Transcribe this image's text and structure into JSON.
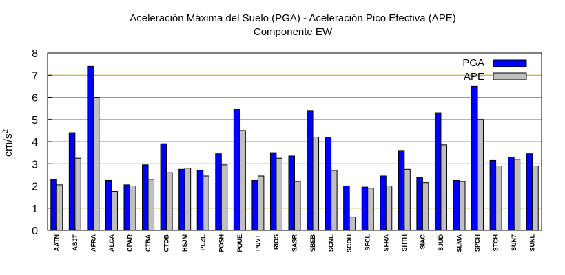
{
  "chart_data": {
    "type": "bar",
    "title_line1": "Aceleración Máxima del Suelo (PGA) -  Aceleración Pico Efectiva (APE)",
    "title_line2": "Componente EW",
    "ylabel": "cm/s²",
    "ylim": [
      0,
      8
    ],
    "yticks": [
      "0",
      "1",
      "2",
      "3",
      "4",
      "5",
      "6",
      "7",
      "8"
    ],
    "grid": "horizontal",
    "legend_position": "top-right",
    "categories": [
      "AATN",
      "ABJT",
      "AFRA",
      "ALCA",
      "CPAR",
      "CTBA",
      "CTOB",
      "HSJM",
      "PEZE",
      "POSH",
      "PQUE",
      "PUVT",
      "RIOS",
      "SASR",
      "SBEB",
      "SCNE",
      "SCOH",
      "SFCL",
      "SFRA",
      "SHTH",
      "SIAC",
      "SJUD",
      "SLMA",
      "SPCH",
      "STCH",
      "SUN7",
      "SUNL"
    ],
    "series": [
      {
        "name": "PGA",
        "color": "#0000ff",
        "values": [
          2.3,
          4.4,
          7.4,
          2.25,
          2.05,
          2.95,
          3.9,
          2.75,
          2.7,
          3.45,
          5.45,
          2.25,
          3.5,
          3.35,
          5.4,
          4.2,
          2.0,
          1.95,
          2.45,
          3.6,
          2.4,
          5.3,
          2.25,
          6.5,
          3.15,
          3.3,
          3.45
        ]
      },
      {
        "name": "APE",
        "color": "#c0c0c0",
        "values": [
          2.05,
          3.25,
          6.0,
          1.75,
          2.0,
          2.3,
          2.6,
          2.8,
          2.45,
          2.95,
          4.5,
          2.45,
          3.25,
          2.2,
          4.2,
          2.7,
          0.6,
          1.9,
          2.0,
          2.75,
          2.15,
          3.85,
          2.2,
          5.0,
          2.9,
          3.2,
          2.9
        ]
      }
    ]
  },
  "colors": {
    "grid": "#c8a000",
    "axis": "#000000"
  }
}
